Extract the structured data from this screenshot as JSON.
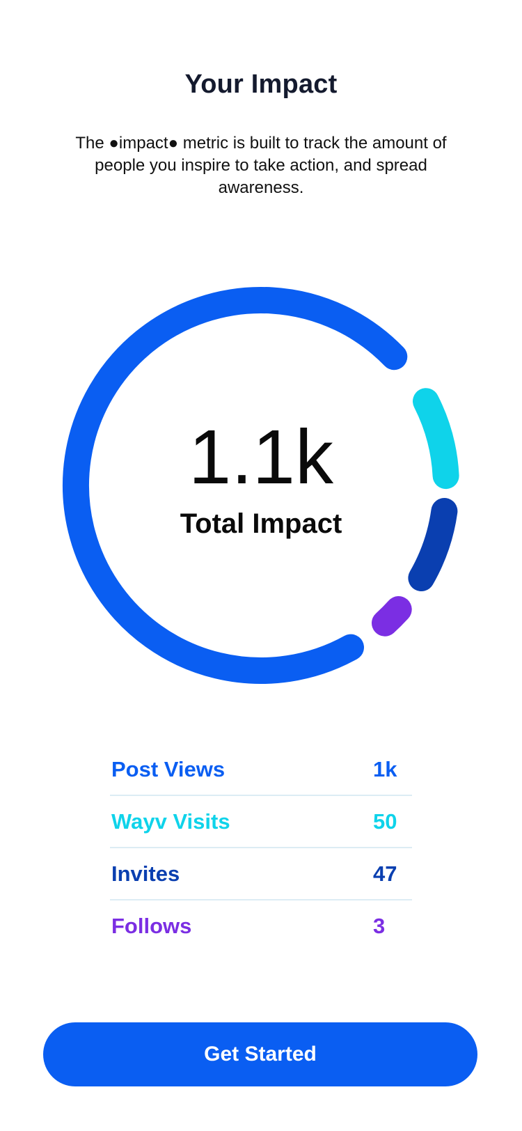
{
  "page": {
    "title": "Your Impact",
    "description": "The ●impact● metric is built to track the amount of people you inspire to take action, and spread awareness."
  },
  "impact": {
    "total_value": "1.1k",
    "total_label": "Total Impact",
    "stats": [
      {
        "label": "Post Views",
        "value": "1k",
        "color": "#0a5ef2"
      },
      {
        "label": "Wayv Visits",
        "value": "50",
        "color": "#0fd3ea"
      },
      {
        "label": "Invites",
        "value": "47",
        "color": "#0a3fb0"
      },
      {
        "label": "Follows",
        "value": "3",
        "color": "#7b2ee3"
      }
    ]
  },
  "cta": {
    "label": "Get Started",
    "color": "#0a5ef2"
  }
}
